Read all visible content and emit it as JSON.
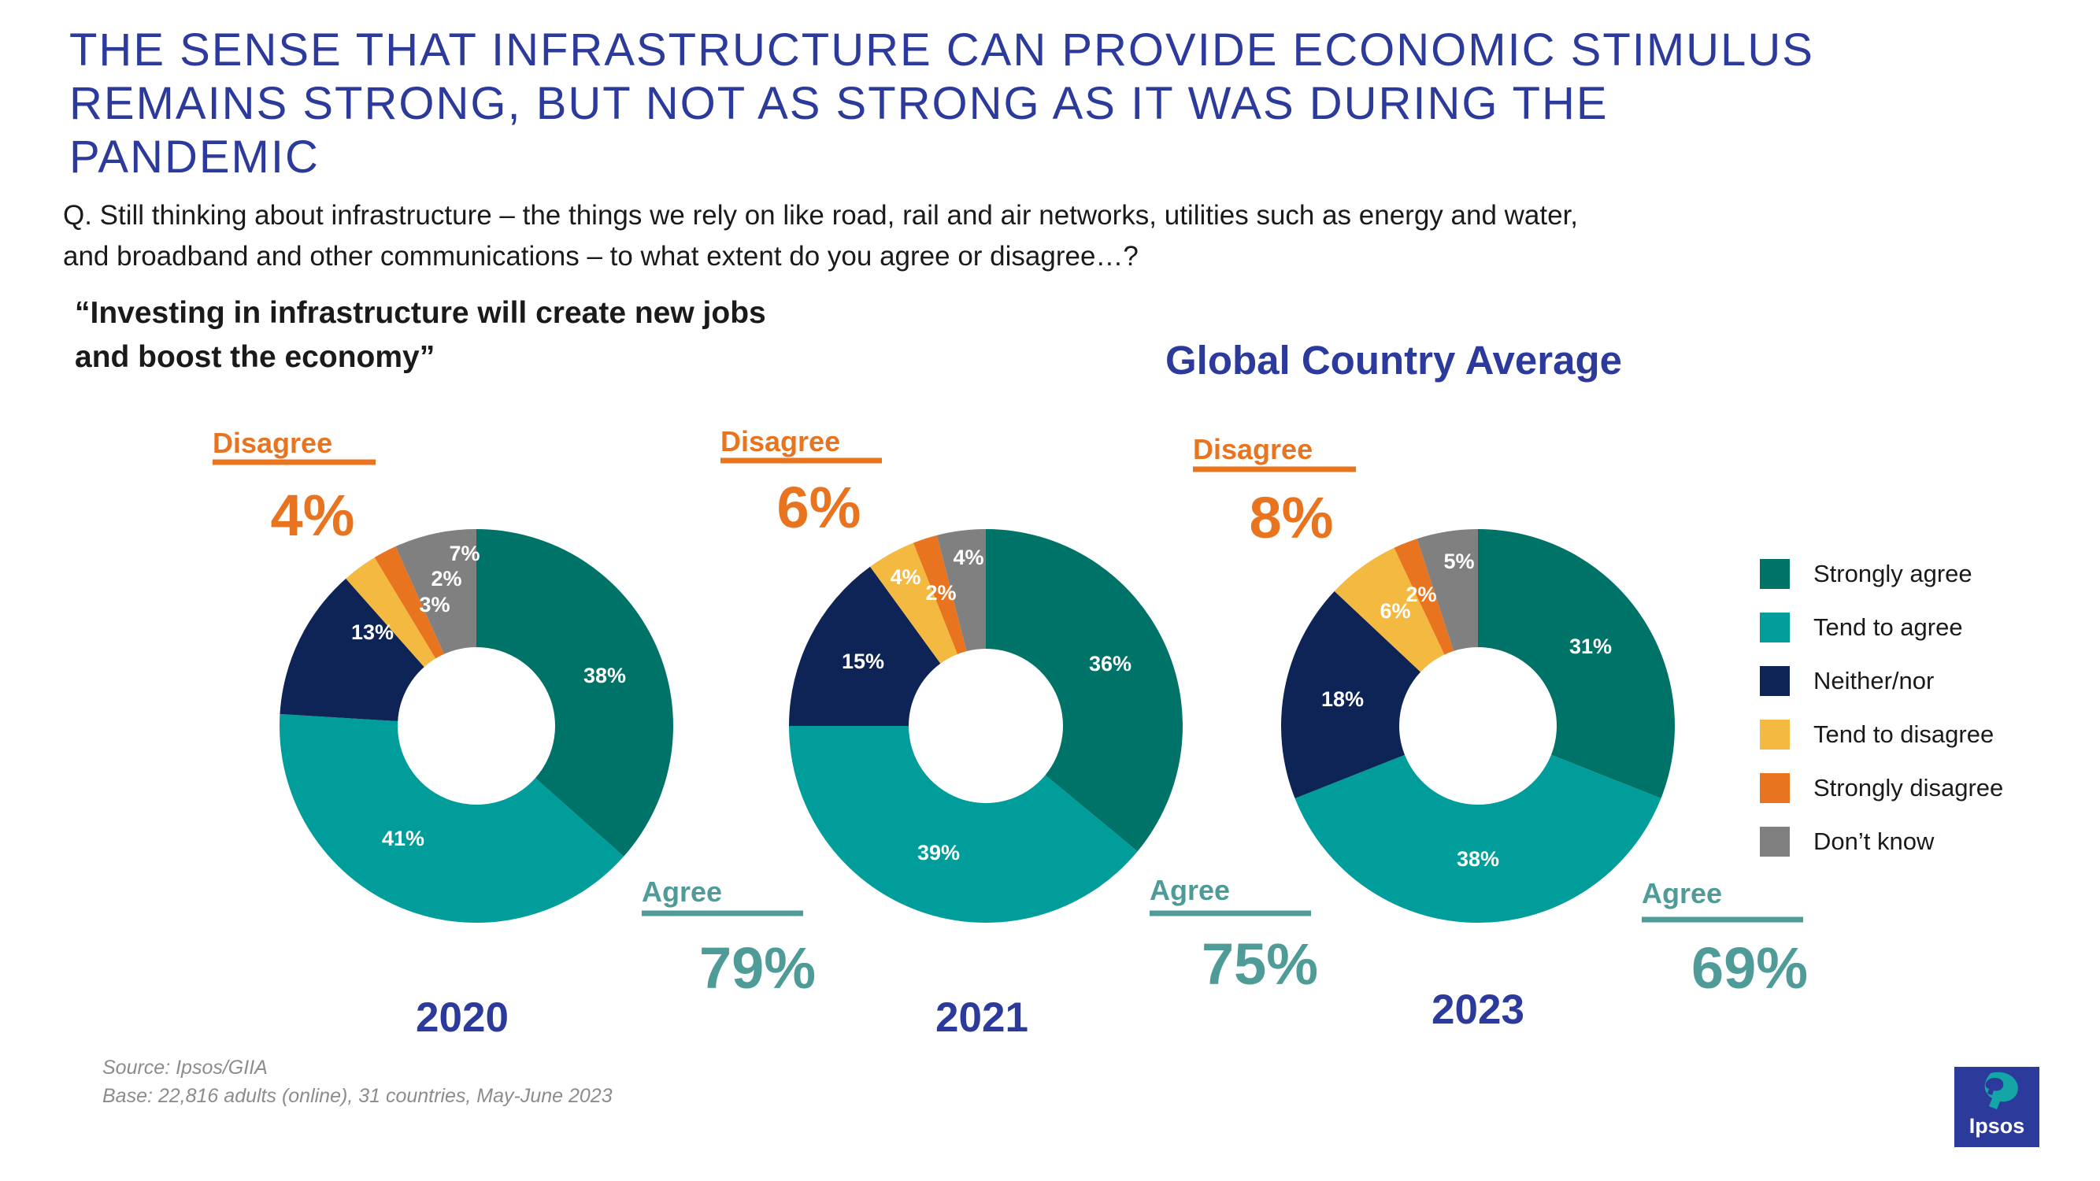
{
  "title_lines": [
    "THE SENSE THAT INFRASTRUCTURE CAN PROVIDE ECONOMIC STIMULUS",
    "REMAINS STRONG, BUT NOT AS STRONG AS IT WAS DURING THE",
    "PANDEMIC"
  ],
  "question_lines": [
    "Q. Still thinking about infrastructure – the things we rely on like road, rail and air networks, utilities such as energy and water,",
    "and broadband and other communications – to what extent do you agree or disagree…?"
  ],
  "quote_lines": [
    "“Investing in infrastructure will create new jobs",
    "and boost the economy”"
  ],
  "global_label": "Global Country Average",
  "colors": {
    "title": "#2b3a9b",
    "strongly_agree": "#007369",
    "tend_to_agree": "#009d9b",
    "neither": "#0e2456",
    "tend_to_disagree": "#f4b941",
    "strongly_disagree": "#e9741f",
    "dont_know": "#808080",
    "disagree_accent": "#e9741f",
    "agree_accent": "#4e9b98"
  },
  "summary_labels": {
    "disagree": "Disagree",
    "agree": "Agree"
  },
  "chart_data": [
    {
      "type": "pie",
      "donut": true,
      "year": "2020",
      "categories": [
        "Strongly agree",
        "Tend to agree",
        "Neither/nor",
        "Tend to disagree",
        "Strongly disagree",
        "Don’t know"
      ],
      "values": [
        38,
        41,
        13,
        3,
        2,
        7
      ],
      "labels": [
        "38%",
        "41%",
        "13%",
        "3%",
        "2%",
        "7%"
      ],
      "disagree_total": "4%",
      "agree_total": "79%"
    },
    {
      "type": "pie",
      "donut": true,
      "year": "2021",
      "categories": [
        "Strongly agree",
        "Tend to agree",
        "Neither/nor",
        "Tend to disagree",
        "Strongly disagree",
        "Don’t know"
      ],
      "values": [
        36,
        39,
        15,
        4,
        2,
        4
      ],
      "labels": [
        "36%",
        "39%",
        "15%",
        "4%",
        "2%",
        "4%"
      ],
      "disagree_total": "6%",
      "agree_total": "75%"
    },
    {
      "type": "pie",
      "donut": true,
      "year": "2023",
      "categories": [
        "Strongly agree",
        "Tend to agree",
        "Neither/nor",
        "Tend to disagree",
        "Strongly disagree",
        "Don’t know"
      ],
      "values": [
        31,
        38,
        18,
        6,
        2,
        5
      ],
      "labels": [
        "31%",
        "38%",
        "18%",
        "6%",
        "2%",
        "5%"
      ],
      "disagree_total": "8%",
      "agree_total": "69%"
    }
  ],
  "legend": [
    {
      "label": "Strongly agree",
      "color": "#007369"
    },
    {
      "label": "Tend to agree",
      "color": "#009d9b"
    },
    {
      "label": "Neither/nor",
      "color": "#0e2456"
    },
    {
      "label": "Tend to disagree",
      "color": "#f4b941"
    },
    {
      "label": "Strongly disagree",
      "color": "#e9741f"
    },
    {
      "label": "Don’t know",
      "color": "#808080"
    }
  ],
  "source_lines": [
    "Source: Ipsos/GIIA",
    "Base: 22,816 adults (online), 31 countries, May-June 2023"
  ],
  "logo_text": "Ipsos"
}
